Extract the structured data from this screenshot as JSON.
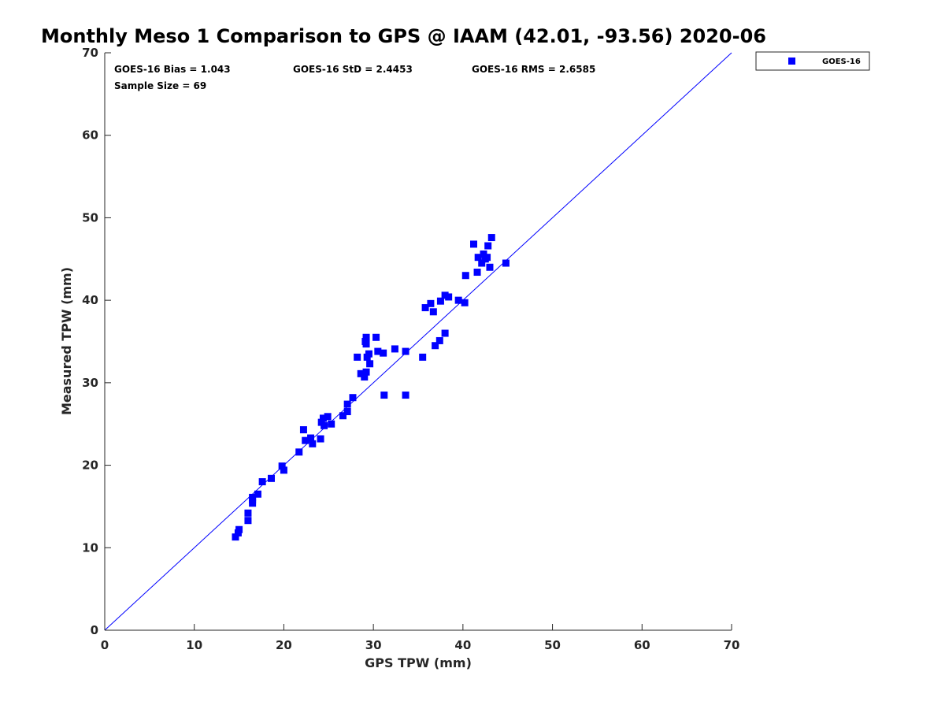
{
  "chart_data": {
    "type": "scatter",
    "title": "Monthly Meso 1 Comparison to GPS @ IAAM (42.01, -93.56) 2020-06",
    "xlabel": "GPS TPW (mm)",
    "ylabel": "Measured TPW (mm)",
    "xlim": [
      0,
      70
    ],
    "ylim": [
      0,
      70
    ],
    "xticks": [
      "0",
      "10",
      "20",
      "30",
      "40",
      "50",
      "60",
      "70"
    ],
    "yticks": [
      "0",
      "10",
      "20",
      "30",
      "40",
      "50",
      "60",
      "70"
    ],
    "grid": false,
    "legend_position": "outside-top-right",
    "stats": {
      "bias": "GOES-16 Bias = 1.043",
      "std": "GOES-16 StD = 2.4453",
      "rms": "GOES-16 RMS = 2.6585",
      "sample_size": "Sample Size = 69"
    },
    "reference_line": {
      "name": "1:1",
      "from": [
        0,
        0
      ],
      "to": [
        70,
        70
      ],
      "color": "#0000ff"
    },
    "series": [
      {
        "name": "GOES-16",
        "color": "#0000ff",
        "marker": "square",
        "points": [
          [
            14.6,
            11.3
          ],
          [
            14.9,
            11.8
          ],
          [
            15.0,
            12.2
          ],
          [
            16.0,
            13.3
          ],
          [
            16.0,
            14.2
          ],
          [
            16.5,
            15.4
          ],
          [
            16.5,
            15.8
          ],
          [
            16.5,
            16.1
          ],
          [
            17.1,
            16.5
          ],
          [
            17.6,
            18.0
          ],
          [
            18.6,
            18.4
          ],
          [
            19.8,
            19.9
          ],
          [
            20.0,
            19.4
          ],
          [
            21.7,
            21.6
          ],
          [
            22.2,
            24.3
          ],
          [
            22.4,
            23.0
          ],
          [
            23.0,
            23.3
          ],
          [
            23.2,
            22.6
          ],
          [
            24.1,
            23.2
          ],
          [
            24.2,
            25.2
          ],
          [
            24.4,
            25.7
          ],
          [
            24.5,
            24.8
          ],
          [
            24.9,
            25.9
          ],
          [
            25.3,
            25.0
          ],
          [
            26.6,
            26.0
          ],
          [
            27.1,
            26.5
          ],
          [
            27.1,
            27.4
          ],
          [
            27.7,
            28.2
          ],
          [
            28.2,
            33.1
          ],
          [
            28.6,
            31.1
          ],
          [
            29.0,
            30.7
          ],
          [
            29.2,
            31.3
          ],
          [
            29.1,
            35.0
          ],
          [
            29.2,
            35.5
          ],
          [
            29.2,
            34.7
          ],
          [
            29.3,
            33.1
          ],
          [
            29.5,
            33.5
          ],
          [
            29.6,
            32.3
          ],
          [
            30.3,
            35.5
          ],
          [
            30.5,
            33.8
          ],
          [
            31.1,
            33.6
          ],
          [
            31.2,
            28.5
          ],
          [
            32.4,
            34.1
          ],
          [
            33.6,
            33.8
          ],
          [
            33.6,
            28.5
          ],
          [
            35.5,
            33.1
          ],
          [
            35.8,
            39.1
          ],
          [
            36.4,
            39.6
          ],
          [
            36.7,
            38.6
          ],
          [
            36.9,
            34.5
          ],
          [
            37.4,
            35.1
          ],
          [
            37.5,
            39.9
          ],
          [
            38.0,
            36.0
          ],
          [
            38.0,
            40.6
          ],
          [
            38.4,
            40.4
          ],
          [
            39.5,
            40.0
          ],
          [
            40.2,
            39.7
          ],
          [
            40.3,
            43.0
          ],
          [
            41.2,
            46.8
          ],
          [
            41.6,
            43.4
          ],
          [
            41.7,
            45.2
          ],
          [
            42.1,
            44.5
          ],
          [
            42.3,
            45.6
          ],
          [
            42.7,
            45.2
          ],
          [
            42.8,
            46.6
          ],
          [
            43.0,
            44.0
          ],
          [
            43.2,
            47.6
          ],
          [
            44.8,
            44.5
          ],
          [
            42.5,
            45.0
          ]
        ]
      }
    ]
  }
}
